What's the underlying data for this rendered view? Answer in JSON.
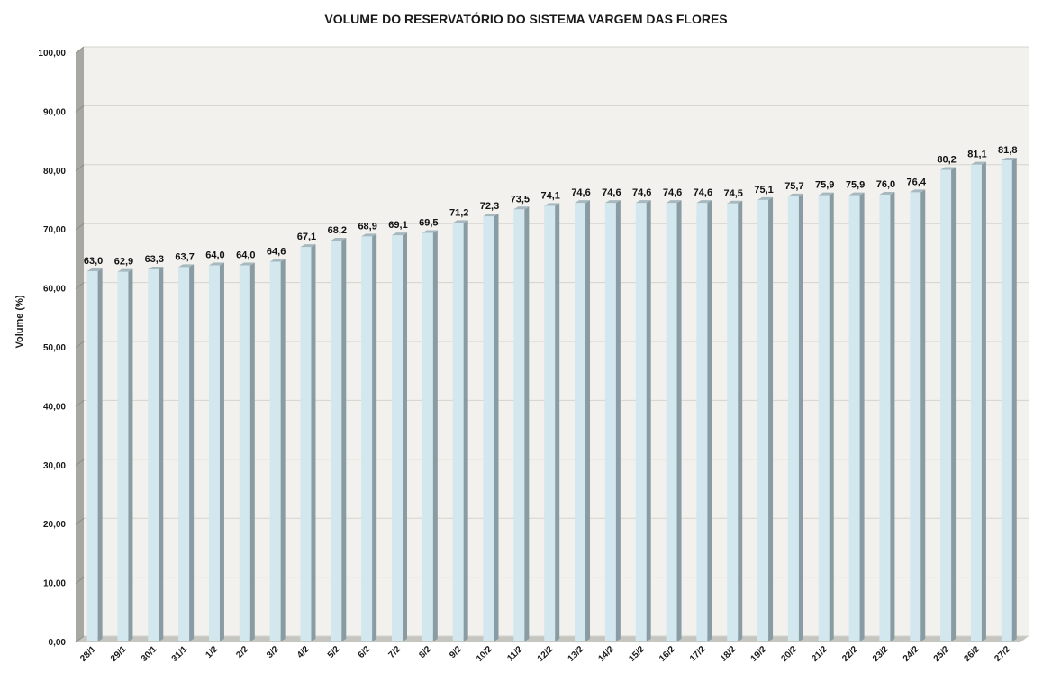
{
  "chart_data": {
    "type": "bar",
    "title": "VOLUME DO RESERVATÓRIO DO SISTEMA VARGEM DAS FLORES",
    "xlabel": "",
    "ylabel": "Volume (%)",
    "ylim": [
      0,
      100
    ],
    "y_ticks": [
      "0,00",
      "10,00",
      "20,00",
      "30,00",
      "40,00",
      "50,00",
      "60,00",
      "70,00",
      "80,00",
      "90,00",
      "100,00"
    ],
    "grid": true,
    "categories": [
      "28/1",
      "29/1",
      "30/1",
      "31/1",
      "1/2",
      "2/2",
      "3/2",
      "4/2",
      "5/2",
      "6/2",
      "7/2",
      "8/2",
      "9/2",
      "10/2",
      "11/2",
      "12/2",
      "13/2",
      "14/2",
      "15/2",
      "16/2",
      "17/2",
      "18/2",
      "19/2",
      "20/2",
      "21/2",
      "22/2",
      "23/2",
      "24/2",
      "25/2",
      "26/2",
      "27/2"
    ],
    "values": [
      63.0,
      62.9,
      63.3,
      63.7,
      64.0,
      64.0,
      64.6,
      67.1,
      68.2,
      68.9,
      69.1,
      69.5,
      71.2,
      72.3,
      73.5,
      74.1,
      74.6,
      74.6,
      74.6,
      74.6,
      74.6,
      74.5,
      75.1,
      75.7,
      75.9,
      75.9,
      76.0,
      76.4,
      80.2,
      81.1,
      81.8
    ],
    "data_labels": [
      "63,0",
      "62,9",
      "63,3",
      "63,7",
      "64,0",
      "64,0",
      "64,6",
      "67,1",
      "68,2",
      "68,9",
      "69,1",
      "69,5",
      "71,2",
      "72,3",
      "73,5",
      "74,1",
      "74,6",
      "74,6",
      "74,6",
      "74,6",
      "74,6",
      "74,5",
      "75,1",
      "75,7",
      "75,9",
      "75,9",
      "76,0",
      "76,4",
      "80,2",
      "81,1",
      "81,8"
    ],
    "colors": {
      "bar_front": "#d2e7ee",
      "bar_side": "#8a9ca3",
      "bar_top": "#a7b9bf",
      "plot_back": "#f2f1ed",
      "wall_side": "#a8a8a2",
      "floor": "#c6c6c0",
      "gridline": "#d4d4ce"
    }
  }
}
